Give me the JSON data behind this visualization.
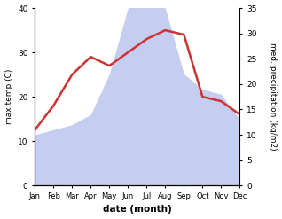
{
  "months": [
    "Jan",
    "Feb",
    "Mar",
    "Apr",
    "May",
    "Jun",
    "Jul",
    "Aug",
    "Sep",
    "Oct",
    "Nov",
    "Dec"
  ],
  "x": [
    1,
    2,
    3,
    4,
    5,
    6,
    7,
    8,
    9,
    10,
    11,
    12
  ],
  "temperature": [
    12.5,
    18,
    25,
    29,
    27,
    30,
    33,
    35,
    34,
    20,
    19,
    16
  ],
  "precipitation": [
    10,
    11,
    12,
    14,
    22,
    35,
    36,
    35,
    22,
    19,
    18,
    13
  ],
  "temp_color": "#cc3333",
  "precip_fill_color": "#c5cef0",
  "bg_color": "#ffffff",
  "temp_ylim": [
    0,
    40
  ],
  "precip_ylim": [
    0,
    35
  ],
  "temp_yticks": [
    0,
    10,
    20,
    30,
    40
  ],
  "precip_yticks": [
    0,
    5,
    10,
    15,
    20,
    25,
    30,
    35
  ],
  "xlabel": "date (month)",
  "ylabel_left": "max temp (C)",
  "ylabel_right": "med. precipitation (kg/m2)",
  "line_width": 1.8
}
